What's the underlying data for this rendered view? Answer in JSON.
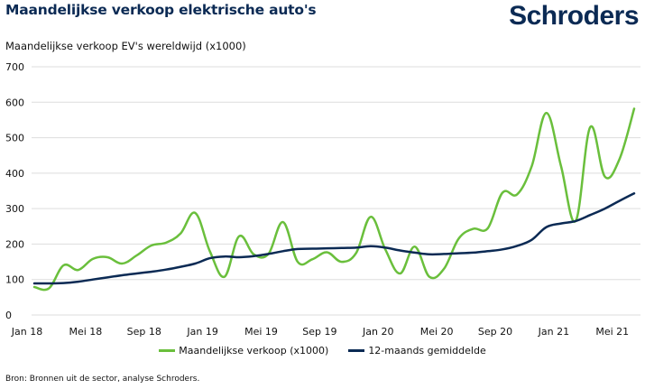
{
  "header": {
    "title": "Maandelijkse verkoop elektrische auto's",
    "logo": "Schroders"
  },
  "colors": {
    "title": "#0b2a54",
    "monthly_series": "#6abf3c",
    "average_series": "#0b2a54",
    "grid": "#dddddd"
  },
  "footer": {
    "source": "Bron: Bronnen uit de sector, analyse Schroders."
  },
  "chart_data": {
    "type": "line",
    "title": "Maandelijkse verkoop elektrische auto's",
    "subtitle": "Maandelijkse verkoop EV's wereldwijd (x1000)",
    "xlabel": "",
    "ylabel": "Maandelijkse verkoop EV's wereldwijd (x1000)",
    "ylim": [
      0,
      700
    ],
    "yticks": [
      0,
      100,
      200,
      300,
      400,
      500,
      600,
      700
    ],
    "grid": true,
    "legend_position": "bottom-center",
    "x": [
      "Jan 18",
      "Feb 18",
      "Mrt 18",
      "Apr 18",
      "Mei 18",
      "Jun 18",
      "Jul 18",
      "Aug 18",
      "Sep 18",
      "Okt 18",
      "Nov 18",
      "Dec 18",
      "Jan 19",
      "Feb 19",
      "Mrt 19",
      "Apr 19",
      "Mei 19",
      "Jun 19",
      "Jul 19",
      "Aug 19",
      "Sep 19",
      "Okt 19",
      "Nov 19",
      "Dec 19",
      "Jan 20",
      "Feb 20",
      "Mrt 20",
      "Apr 20",
      "Mei 20",
      "Jun 20",
      "Jul 20",
      "Aug 20",
      "Sep 20",
      "Okt 20",
      "Nov 20",
      "Dec 20",
      "Jan 21",
      "Feb 21",
      "Mrt 21",
      "Apr 21",
      "Mei 21",
      "Jun 21"
    ],
    "xtick_labels": [
      {
        "index": 0,
        "label": "Jan 18"
      },
      {
        "index": 4,
        "label": "Mei 18"
      },
      {
        "index": 8,
        "label": "Sep 18"
      },
      {
        "index": 12,
        "label": "Jan 19"
      },
      {
        "index": 16,
        "label": "Mei  19"
      },
      {
        "index": 20,
        "label": "Sep 19"
      },
      {
        "index": 24,
        "label": "Jan 20"
      },
      {
        "index": 28,
        "label": "Mei  20"
      },
      {
        "index": 32,
        "label": "Sep 20"
      },
      {
        "index": 36,
        "label": "Jan 21"
      },
      {
        "index": 40,
        "label": "Mei  21"
      }
    ],
    "series": [
      {
        "name": "Maandelijkse verkoop (x1000)",
        "color": "#6abf3c",
        "values": [
          79,
          75,
          140,
          127,
          158,
          163,
          145,
          168,
          196,
          204,
          230,
          288,
          180,
          108,
          222,
          171,
          172,
          262,
          150,
          157,
          177,
          150,
          175,
          277,
          184,
          117,
          193,
          108,
          130,
          215,
          243,
          245,
          345,
          340,
          420,
          570,
          420,
          265,
          530,
          390,
          440,
          582
        ]
      },
      {
        "name": "12-maands gemiddelde",
        "color": "#0b2a54",
        "values": [
          89,
          89,
          90,
          94,
          100,
          106,
          112,
          117,
          122,
          128,
          136,
          145,
          160,
          165,
          163,
          166,
          172,
          180,
          186,
          187,
          188,
          189,
          190,
          194,
          190,
          182,
          176,
          171,
          172,
          174,
          176,
          180,
          185,
          195,
          212,
          248,
          258,
          265,
          282,
          300,
          322,
          343
        ]
      }
    ]
  }
}
